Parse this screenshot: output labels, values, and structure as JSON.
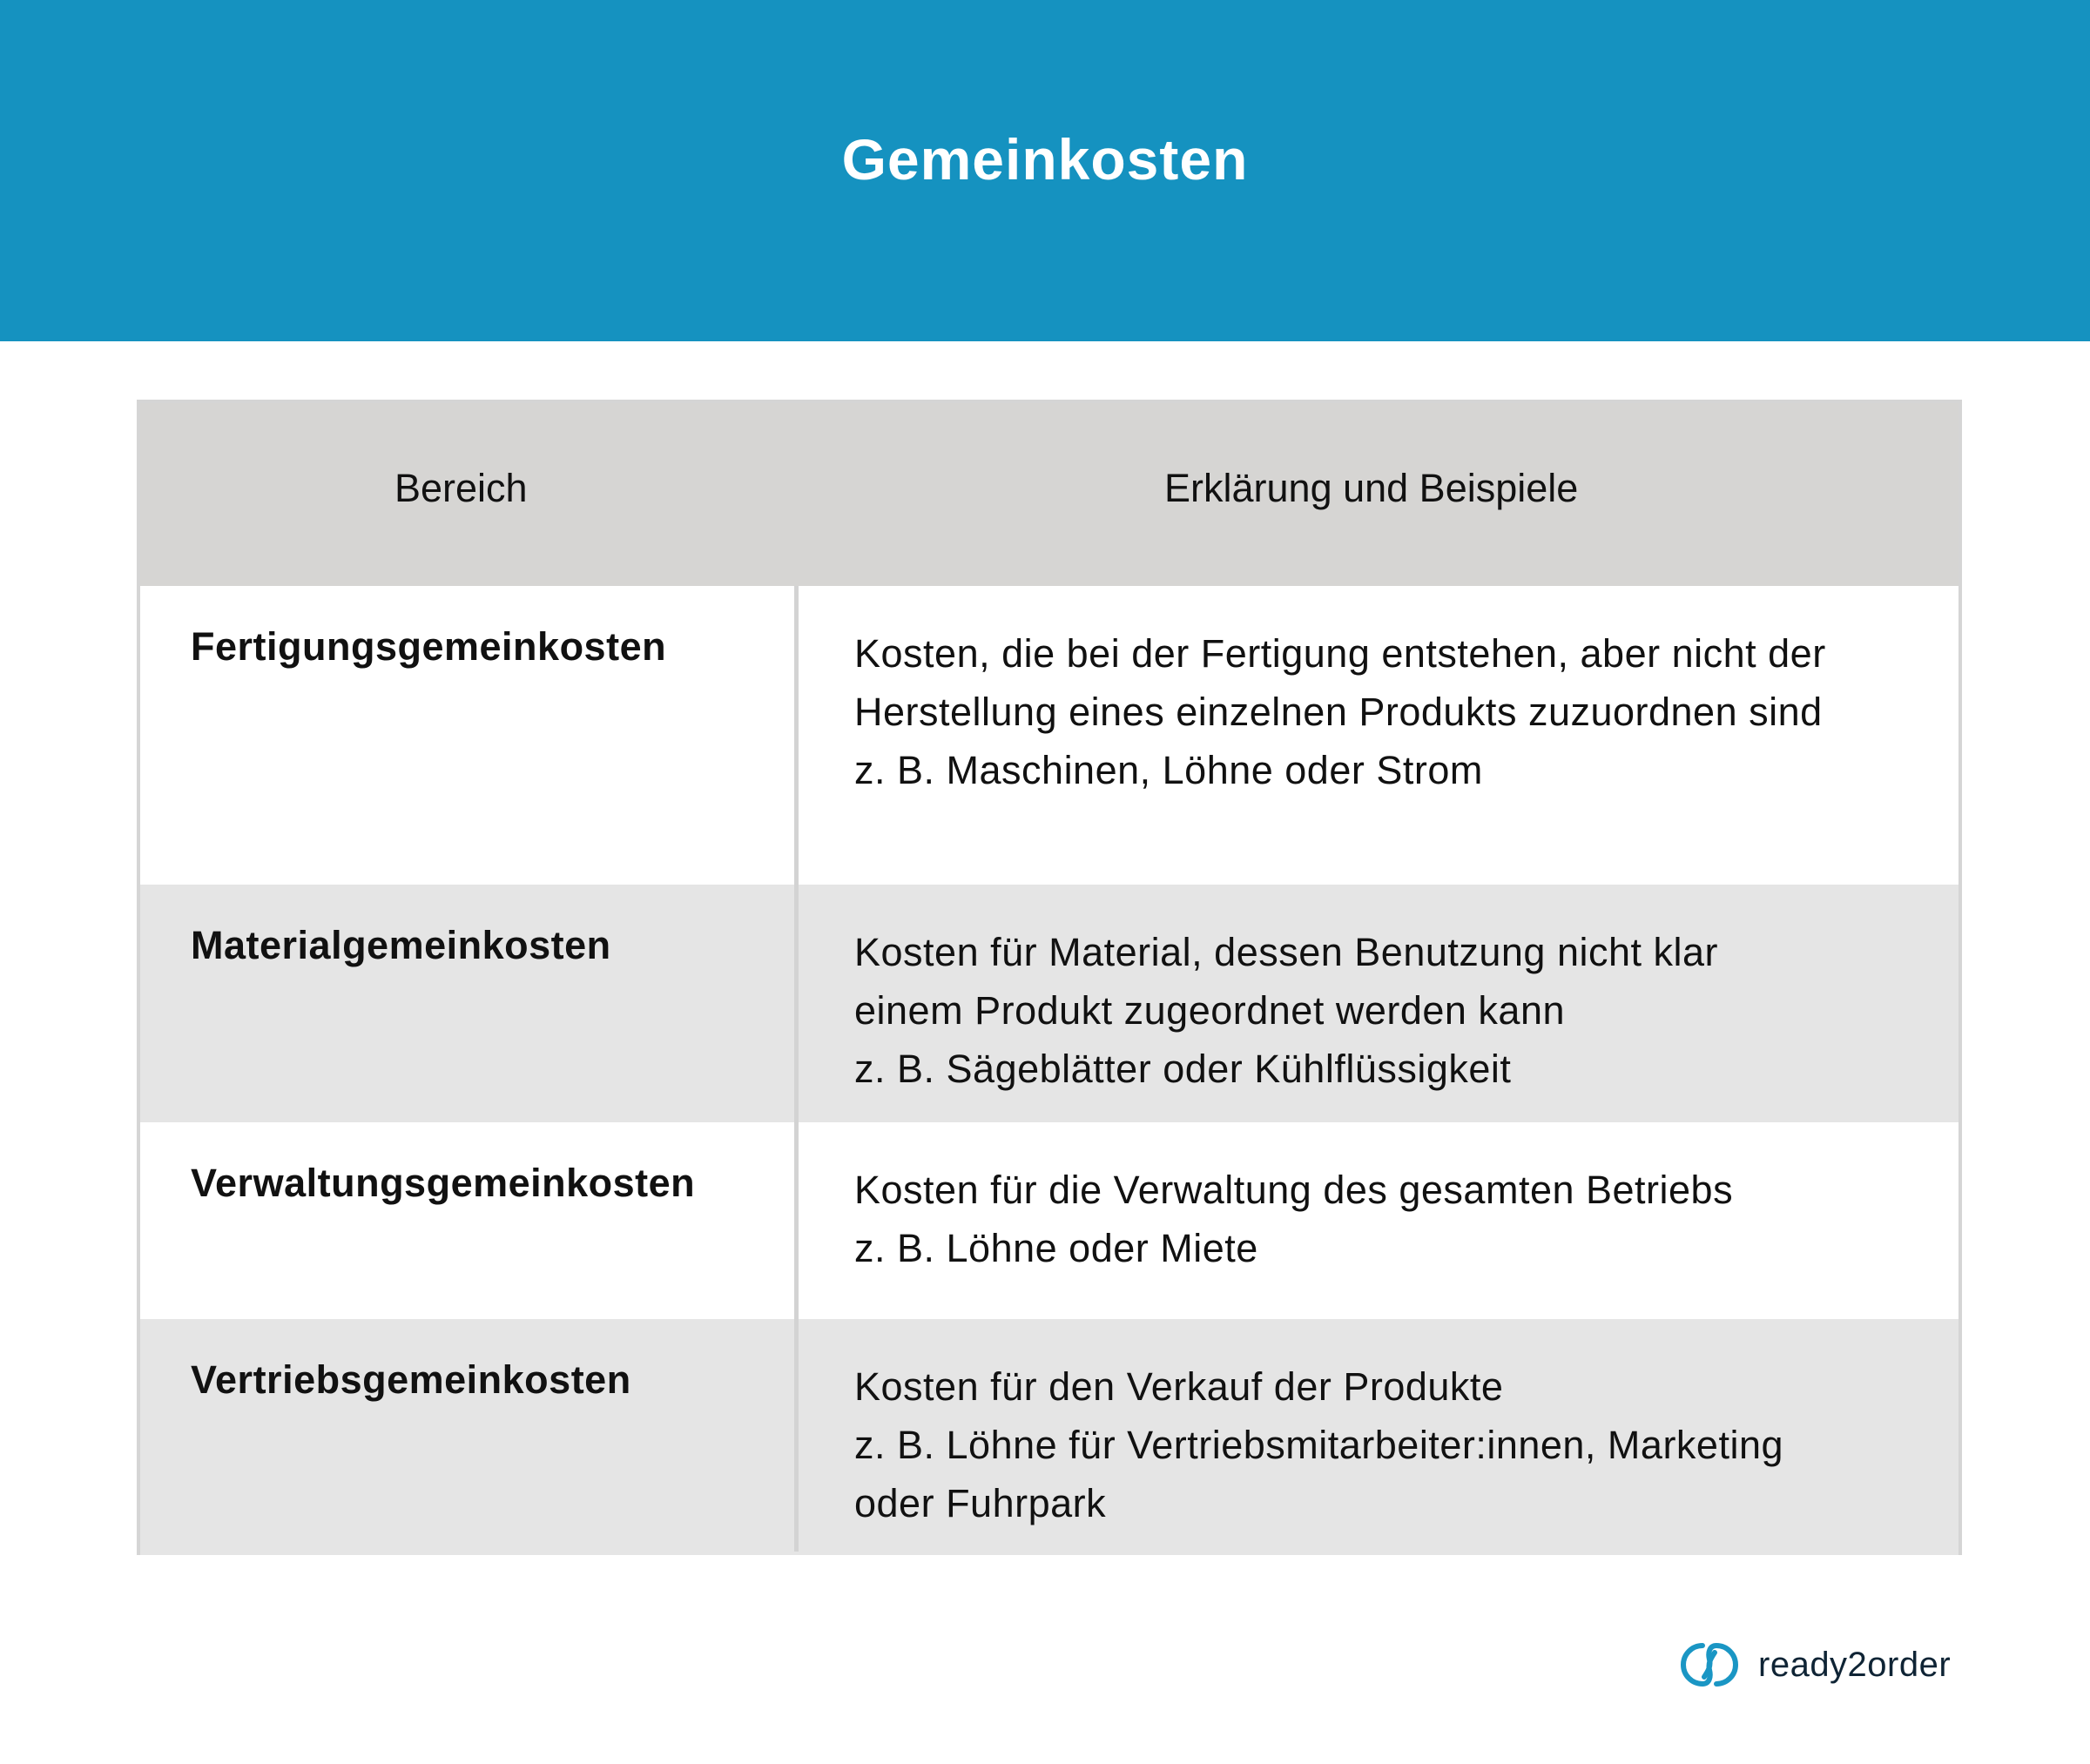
{
  "header": {
    "title": "Gemeinkosten",
    "background_color": "#1592c0"
  },
  "table": {
    "columns": [
      "Bereich",
      "Erklärung und Beispiele"
    ],
    "rows": [
      {
        "bereich": "Fertigungsgemeinkosten",
        "lines": [
          "Kosten, die bei der Fertigung entstehen, aber nicht der",
          "Herstellung eines einzelnen Produkts zuzuordnen sind",
          "z. B. Maschinen, Löhne oder Strom"
        ]
      },
      {
        "bereich": "Materialgemeinkosten",
        "lines": [
          "Kosten für Material, dessen Benutzung nicht klar",
          "einem Produkt zugeordnet werden kann",
          "z. B. Sägeblätter oder Kühlflüssigkeit"
        ]
      },
      {
        "bereich": "Verwaltungsgemeinkosten",
        "lines": [
          "Kosten für die Verwaltung des gesamten Betriebs",
          "z. B. Löhne oder Miete"
        ]
      },
      {
        "bereich": "Vertriebsgemeinkosten",
        "lines": [
          "Kosten für den Verkauf der Produkte",
          "z. B. Löhne für Vertriebsmitarbeiter:innen, Marketing",
          "oder Fuhrpark"
        ]
      }
    ]
  },
  "logo": {
    "text": "ready2order",
    "icon": "ready2order-logo-icon",
    "color": "#1a96c4"
  }
}
